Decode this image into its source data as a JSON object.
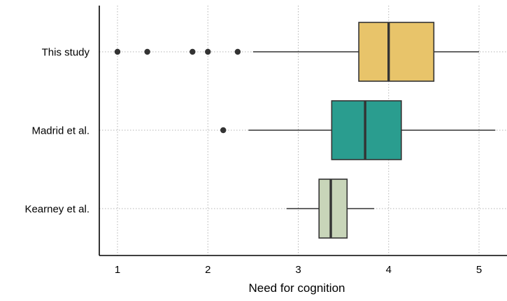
{
  "chart_data": {
    "type": "boxplot",
    "orientation": "horizontal",
    "xlabel": "Need for cognition",
    "ylabel": "",
    "xlim": [
      0.8,
      5.2
    ],
    "x_ticks": [
      1,
      2,
      3,
      4,
      5
    ],
    "grid": true,
    "categories": [
      "This study",
      "Madrid et al.",
      "Kearney et al."
    ],
    "series": [
      {
        "category": "This study",
        "whisker_low": 2.5,
        "q1": 3.67,
        "median": 4.0,
        "q3": 4.5,
        "whisker_high": 5.0,
        "outliers": [
          1.0,
          1.33,
          1.83,
          2.0,
          2.33
        ],
        "color": "#E8C46A"
      },
      {
        "category": "Madrid et al.",
        "whisker_low": 2.45,
        "q1": 3.37,
        "median": 3.74,
        "q3": 4.14,
        "whisker_high": 5.18,
        "outliers": [
          2.17
        ],
        "color": "#2A9D8F"
      },
      {
        "category": "Kearney et al.",
        "whisker_low": 2.87,
        "q1": 3.23,
        "median": 3.36,
        "q3": 3.54,
        "whisker_high": 3.84,
        "outliers": [],
        "color": "#C8D5B9"
      }
    ]
  }
}
